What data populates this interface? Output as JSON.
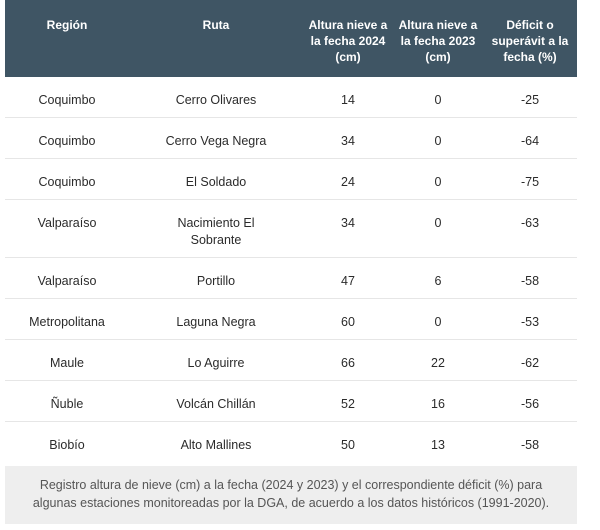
{
  "table": {
    "headers": [
      "Región",
      "Ruta",
      "Altura nieve a la fecha 2024 (cm)",
      "Altura nieve a la fecha 2023 (cm)",
      "Déficit o superávit a la fecha (%)"
    ],
    "rows": [
      {
        "region": "Coquimbo",
        "ruta": "Cerro Olivares",
        "h2024": "14",
        "h2023": "0",
        "deficit": "-25"
      },
      {
        "region": "Coquimbo",
        "ruta": "Cerro Vega Negra",
        "h2024": "34",
        "h2023": "0",
        "deficit": "-64"
      },
      {
        "region": "Coquimbo",
        "ruta": "El Soldado",
        "h2024": "24",
        "h2023": "0",
        "deficit": "-75"
      },
      {
        "region": "Valparaíso",
        "ruta": "Nacimiento El Sobrante",
        "h2024": "34",
        "h2023": "0",
        "deficit": "-63"
      },
      {
        "region": "Valparaíso",
        "ruta": "Portillo",
        "h2024": "47",
        "h2023": "6",
        "deficit": "-58"
      },
      {
        "region": "Metropolitana",
        "ruta": "Laguna Negra",
        "h2024": "60",
        "h2023": "0",
        "deficit": "-53"
      },
      {
        "region": "Maule",
        "ruta": "Lo Aguirre",
        "h2024": "66",
        "h2023": "22",
        "deficit": "-62"
      },
      {
        "region": "Ñuble",
        "ruta": "Volcán Chillán",
        "h2024": "52",
        "h2023": "16",
        "deficit": "-56"
      },
      {
        "region": "Biobío",
        "ruta": "Alto Mallines",
        "h2024": "50",
        "h2023": "13",
        "deficit": "-58"
      }
    ]
  },
  "caption": "Registro altura de nieve (cm) a la fecha (2024 y 2023) y el correspondiente déficit (%) para algunas estaciones monitoreadas por la DGA, de acuerdo a los datos históricos (1991-2020)."
}
